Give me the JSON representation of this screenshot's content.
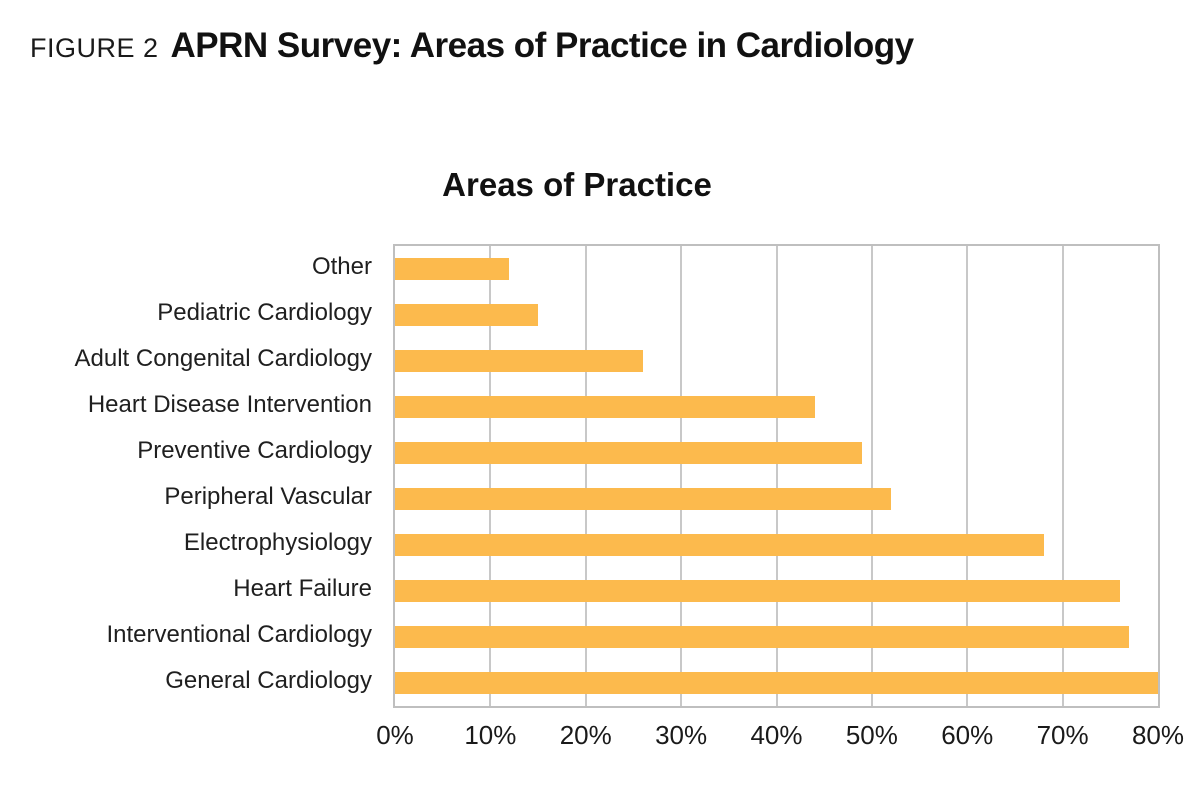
{
  "figure_label": "FIGURE 2",
  "figure_title": "APRN Survey: Areas of Practice in Cardiology",
  "chart_data": {
    "type": "bar",
    "orientation": "horizontal",
    "title": "Areas of Practice",
    "categories": [
      "Other",
      "Pediatric Cardiology",
      "Adult Congenital Cardiology",
      "Heart Disease Intervention",
      "Preventive Cardiology",
      "Peripheral Vascular",
      "Electrophysiology",
      "Heart Failure",
      "Interventional Cardiology",
      "General Cardiology"
    ],
    "values": [
      12,
      15,
      26,
      44,
      49,
      52,
      68,
      76,
      77,
      81
    ],
    "unit": "%",
    "x_ticks": [
      "0%",
      "10%",
      "20%",
      "30%",
      "40%",
      "50%",
      "60%",
      "70%",
      "80%"
    ],
    "xlim": [
      0,
      80
    ],
    "xlabel": "",
    "ylabel": "",
    "grid": true,
    "legend": false,
    "bar_color": "#FCBA4D",
    "gridline_color": "#C8C8C8",
    "plot_border_color": "#BFBFBF",
    "text_color": "#1A1A1A"
  }
}
